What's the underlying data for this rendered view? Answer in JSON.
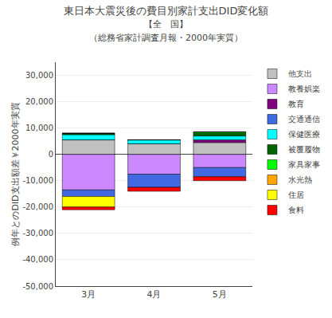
{
  "chart_data": {
    "type": "bar",
    "stacked": true,
    "title": "東日本大震災後の費目別家計支出DID変化額",
    "subtitle": [
      "【全　国】",
      "（総務省家計調査月報・2000年実質）"
    ],
    "ylabel": "例年とのDID支出額差￥2000年実質",
    "categories": [
      "3月",
      "4月",
      "5月"
    ],
    "series": [
      {
        "name": "他支出",
        "color": "#c0c0c0",
        "values": [
          5500,
          4000,
          4500
        ]
      },
      {
        "name": "教養娯楽",
        "color": "#cc88ff",
        "values": [
          -13500,
          -7500,
          -5000
        ]
      },
      {
        "name": "教育",
        "color": "#800080",
        "values": [
          0,
          0,
          1000
        ]
      },
      {
        "name": "交通通信",
        "color": "#4169e1",
        "values": [
          -2500,
          -5000,
          -3500
        ]
      },
      {
        "name": "保健医療",
        "color": "#00ffff",
        "values": [
          2000,
          1500,
          1500
        ]
      },
      {
        "name": "被覆履物",
        "color": "#006400",
        "values": [
          500,
          0,
          1000
        ]
      },
      {
        "name": "家具家事",
        "color": "#00ff00",
        "values": [
          0,
          0,
          500
        ]
      },
      {
        "name": "水光熱",
        "color": "#ffa500",
        "values": [
          0,
          0,
          0
        ]
      },
      {
        "name": "住居",
        "color": "#ffff00",
        "values": [
          -4000,
          0,
          0
        ]
      },
      {
        "name": "食料",
        "color": "#ff0000",
        "values": [
          -1000,
          -1500,
          -1500
        ]
      }
    ],
    "ylim": [
      -50000,
      35000
    ],
    "yticks": [
      {
        "value": -50000,
        "label": "-50,000"
      },
      {
        "value": -40000,
        "label": "-40,000"
      },
      {
        "value": -30000,
        "label": "-30,000"
      },
      {
        "value": -20000,
        "label": "-20,000"
      },
      {
        "value": -10000,
        "label": "-10,000"
      },
      0,
      {
        "value": 10000,
        "label": "10,000"
      },
      {
        "value": 20000,
        "label": "20,000"
      },
      {
        "value": 30000,
        "label": "30,000"
      }
    ],
    "grid": true,
    "legend": "upper right"
  }
}
